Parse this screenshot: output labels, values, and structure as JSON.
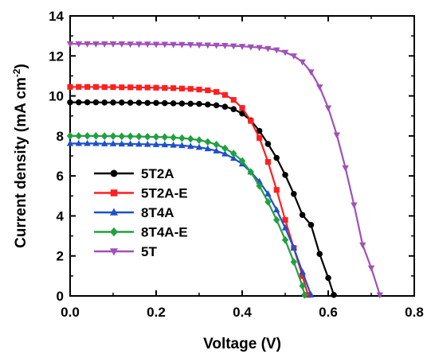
{
  "chart_data": {
    "type": "line",
    "xlabel": "Voltage (V)",
    "ylabel_main": "Current density (mA cm",
    "ylabel_sup": "-2",
    "ylabel_end": ")",
    "xlim": [
      0.0,
      0.8
    ],
    "ylim": [
      0,
      14
    ],
    "x_ticks": [
      "0.0",
      "0.2",
      "0.4",
      "0.6",
      "0.8"
    ],
    "y_ticks": [
      "0",
      "2",
      "4",
      "6",
      "8",
      "10",
      "12",
      "14"
    ],
    "x_tick_values": [
      0.0,
      0.2,
      0.4,
      0.6,
      0.8
    ],
    "y_tick_values": [
      0,
      2,
      4,
      6,
      8,
      10,
      12,
      14
    ],
    "legend_position": "lower-left",
    "series": [
      {
        "name": "5T2A",
        "color": "#000000",
        "marker": "circle",
        "points": [
          [
            0.0,
            9.68
          ],
          [
            0.02,
            9.68
          ],
          [
            0.04,
            9.68
          ],
          [
            0.06,
            9.68
          ],
          [
            0.08,
            9.67
          ],
          [
            0.1,
            9.67
          ],
          [
            0.12,
            9.67
          ],
          [
            0.14,
            9.66
          ],
          [
            0.16,
            9.66
          ],
          [
            0.18,
            9.65
          ],
          [
            0.2,
            9.65
          ],
          [
            0.22,
            9.64
          ],
          [
            0.24,
            9.63
          ],
          [
            0.26,
            9.62
          ],
          [
            0.28,
            9.61
          ],
          [
            0.3,
            9.6
          ],
          [
            0.32,
            9.57
          ],
          [
            0.34,
            9.53
          ],
          [
            0.36,
            9.46
          ],
          [
            0.38,
            9.34
          ],
          [
            0.4,
            9.12
          ],
          [
            0.42,
            8.78
          ],
          [
            0.44,
            8.25
          ],
          [
            0.46,
            7.6
          ],
          [
            0.48,
            6.9
          ],
          [
            0.5,
            6.05
          ],
          [
            0.52,
            5.1
          ],
          [
            0.54,
            4.05
          ],
          [
            0.56,
            3.55
          ],
          [
            0.58,
            2.1
          ],
          [
            0.6,
            0.9
          ],
          [
            0.613,
            0.05
          ]
        ]
      },
      {
        "name": "5T2A-E",
        "color": "#ff1f1f",
        "marker": "square",
        "points": [
          [
            0.0,
            10.45
          ],
          [
            0.02,
            10.45
          ],
          [
            0.04,
            10.45
          ],
          [
            0.06,
            10.45
          ],
          [
            0.08,
            10.44
          ],
          [
            0.1,
            10.44
          ],
          [
            0.12,
            10.43
          ],
          [
            0.14,
            10.43
          ],
          [
            0.16,
            10.42
          ],
          [
            0.18,
            10.42
          ],
          [
            0.2,
            10.41
          ],
          [
            0.22,
            10.4
          ],
          [
            0.24,
            10.39
          ],
          [
            0.26,
            10.37
          ],
          [
            0.28,
            10.35
          ],
          [
            0.3,
            10.32
          ],
          [
            0.32,
            10.28
          ],
          [
            0.34,
            10.2
          ],
          [
            0.36,
            10.05
          ],
          [
            0.38,
            9.8
          ],
          [
            0.4,
            9.4
          ],
          [
            0.42,
            8.75
          ],
          [
            0.44,
            7.9
          ],
          [
            0.46,
            6.7
          ],
          [
            0.48,
            5.3
          ],
          [
            0.5,
            3.8
          ],
          [
            0.52,
            2.4
          ],
          [
            0.54,
            1.0
          ],
          [
            0.553,
            0.05
          ]
        ]
      },
      {
        "name": "8T4A",
        "color": "#1f50c8",
        "marker": "triangle-up",
        "points": [
          [
            0.0,
            7.62
          ],
          [
            0.02,
            7.62
          ],
          [
            0.04,
            7.62
          ],
          [
            0.06,
            7.62
          ],
          [
            0.08,
            7.61
          ],
          [
            0.1,
            7.61
          ],
          [
            0.12,
            7.6
          ],
          [
            0.14,
            7.6
          ],
          [
            0.16,
            7.59
          ],
          [
            0.18,
            7.58
          ],
          [
            0.2,
            7.57
          ],
          [
            0.22,
            7.56
          ],
          [
            0.24,
            7.54
          ],
          [
            0.26,
            7.52
          ],
          [
            0.28,
            7.48
          ],
          [
            0.3,
            7.43
          ],
          [
            0.32,
            7.36
          ],
          [
            0.34,
            7.25
          ],
          [
            0.36,
            7.1
          ],
          [
            0.38,
            6.88
          ],
          [
            0.4,
            6.6
          ],
          [
            0.42,
            6.2
          ],
          [
            0.44,
            5.72
          ],
          [
            0.46,
            5.1
          ],
          [
            0.48,
            4.3
          ],
          [
            0.5,
            3.4
          ],
          [
            0.52,
            2.4
          ],
          [
            0.54,
            1.2
          ],
          [
            0.56,
            0.05
          ]
        ]
      },
      {
        "name": "8T4A-E",
        "color": "#20a040",
        "marker": "diamond",
        "points": [
          [
            0.0,
            8.0
          ],
          [
            0.02,
            8.0
          ],
          [
            0.04,
            8.0
          ],
          [
            0.06,
            8.0
          ],
          [
            0.08,
            7.99
          ],
          [
            0.1,
            7.99
          ],
          [
            0.12,
            7.98
          ],
          [
            0.14,
            7.98
          ],
          [
            0.16,
            7.97
          ],
          [
            0.18,
            7.96
          ],
          [
            0.2,
            7.95
          ],
          [
            0.22,
            7.94
          ],
          [
            0.24,
            7.92
          ],
          [
            0.26,
            7.89
          ],
          [
            0.28,
            7.85
          ],
          [
            0.3,
            7.79
          ],
          [
            0.32,
            7.7
          ],
          [
            0.34,
            7.57
          ],
          [
            0.36,
            7.38
          ],
          [
            0.38,
            7.12
          ],
          [
            0.4,
            6.75
          ],
          [
            0.42,
            6.2
          ],
          [
            0.44,
            5.5
          ],
          [
            0.46,
            4.7
          ],
          [
            0.48,
            3.8
          ],
          [
            0.5,
            2.8
          ],
          [
            0.52,
            1.7
          ],
          [
            0.54,
            0.5
          ],
          [
            0.545,
            0.05
          ]
        ]
      },
      {
        "name": "5T",
        "color": "#a050b8",
        "marker": "triangle-down",
        "points": [
          [
            0.0,
            12.6
          ],
          [
            0.02,
            12.6
          ],
          [
            0.04,
            12.6
          ],
          [
            0.06,
            12.6
          ],
          [
            0.08,
            12.6
          ],
          [
            0.1,
            12.6
          ],
          [
            0.12,
            12.6
          ],
          [
            0.14,
            12.59
          ],
          [
            0.16,
            12.59
          ],
          [
            0.18,
            12.59
          ],
          [
            0.2,
            12.58
          ],
          [
            0.22,
            12.58
          ],
          [
            0.24,
            12.57
          ],
          [
            0.26,
            12.57
          ],
          [
            0.28,
            12.56
          ],
          [
            0.3,
            12.55
          ],
          [
            0.32,
            12.54
          ],
          [
            0.34,
            12.53
          ],
          [
            0.36,
            12.52
          ],
          [
            0.38,
            12.5
          ],
          [
            0.4,
            12.48
          ],
          [
            0.42,
            12.45
          ],
          [
            0.44,
            12.42
          ],
          [
            0.46,
            12.37
          ],
          [
            0.48,
            12.3
          ],
          [
            0.5,
            12.18
          ],
          [
            0.52,
            12.0
          ],
          [
            0.54,
            11.7
          ],
          [
            0.56,
            11.2
          ],
          [
            0.58,
            10.45
          ],
          [
            0.6,
            9.4
          ],
          [
            0.62,
            8.05
          ],
          [
            0.64,
            6.4
          ],
          [
            0.66,
            4.55
          ],
          [
            0.68,
            2.55
          ],
          [
            0.7,
            1.4
          ],
          [
            0.72,
            0.05
          ]
        ]
      }
    ]
  }
}
